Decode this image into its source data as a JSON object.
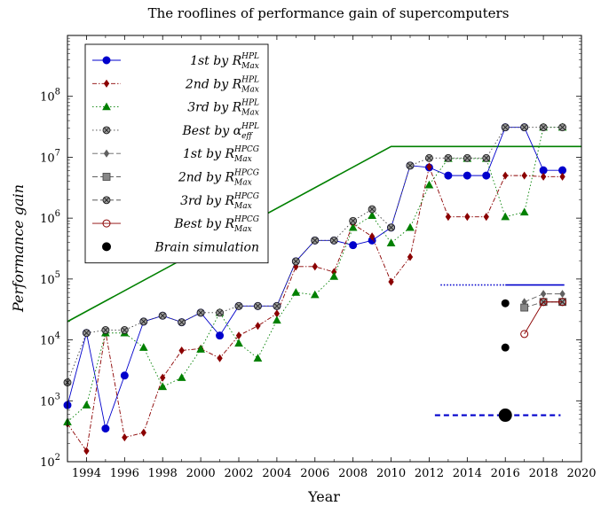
{
  "chart_data": {
    "type": "line",
    "title": "The rooflines of performance gain of supercomputers",
    "xlabel": "Year",
    "ylabel": "Performance gain",
    "xlim": [
      1993,
      2020
    ],
    "ylim": [
      100,
      1000000000
    ],
    "yscale": "log",
    "x_ticks": [
      "1994",
      "1996",
      "1998",
      "2000",
      "2002",
      "2004",
      "2006",
      "2008",
      "2010",
      "2012",
      "2014",
      "2016",
      "2018",
      "2020"
    ],
    "y_ticks": [
      {
        "base": "10",
        "exp": "2"
      },
      {
        "base": "10",
        "exp": "3"
      },
      {
        "base": "10",
        "exp": "4"
      },
      {
        "base": "10",
        "exp": "5"
      },
      {
        "base": "10",
        "exp": "6"
      },
      {
        "base": "10",
        "exp": "7"
      },
      {
        "base": "10",
        "exp": "8"
      }
    ],
    "legend_position": "top-left",
    "series": [
      {
        "name": "1st by R_Max^HPL",
        "legend": {
          "pre": "1st by R",
          "sub": "Max",
          "sup": "HPL"
        },
        "color": "#0000cc",
        "marker": "circle",
        "dash": "solid",
        "x": [
          1993,
          1994,
          1995,
          1996,
          1997,
          1998,
          1999,
          2000,
          2001,
          2002,
          2003,
          2004,
          2005,
          2006,
          2007,
          2008,
          2009,
          2010,
          2011,
          2012,
          2013,
          2014,
          2015,
          2016,
          2017,
          2018,
          2019
        ],
        "y": [
          850,
          13000,
          350,
          2600,
          20000,
          25000,
          19500,
          28000,
          11800,
          36000,
          36000,
          36000,
          195000,
          430000,
          430000,
          360000,
          430000,
          700000,
          7300000,
          6800000,
          5000000,
          5000000,
          5000000,
          31000000,
          31000000,
          6100000,
          6100000
        ]
      },
      {
        "name": "2nd by R_Max^HPL",
        "legend": {
          "pre": "2nd by R",
          "sub": "Max",
          "sup": "HPL"
        },
        "color": "#8b0000",
        "marker": "diamond",
        "dash": "dashdot",
        "x": [
          1993,
          1994,
          1995,
          1996,
          1997,
          1998,
          1999,
          2000,
          2001,
          2002,
          2003,
          2004,
          2005,
          2006,
          2007,
          2008,
          2009,
          2010,
          2011,
          2012,
          2013,
          2014,
          2015,
          2016,
          2017,
          2018,
          2019
        ],
        "y": [
          420,
          150,
          13500,
          250,
          300,
          2400,
          6700,
          7200,
          5000,
          11800,
          17000,
          27000,
          160000,
          160000,
          130000,
          800000,
          500000,
          90000,
          230000,
          7000000,
          1050000,
          1050000,
          1050000,
          5000000,
          5000000,
          4800000,
          4800000
        ]
      },
      {
        "name": "3rd by R_Max^HPL",
        "legend": {
          "pre": "3rd by R",
          "sub": "Max",
          "sup": "HPL"
        },
        "color": "#008000",
        "marker": "triangle",
        "dash": "dotted",
        "x": [
          1993,
          1994,
          1995,
          1996,
          1997,
          1998,
          1999,
          2000,
          2001,
          2002,
          2003,
          2004,
          2005,
          2006,
          2007,
          2008,
          2009,
          2010,
          2011,
          2012,
          2013,
          2014,
          2015,
          2016,
          2017,
          2018,
          2019
        ],
        "y": [
          450,
          850,
          13000,
          13000,
          7500,
          1700,
          2400,
          7000,
          28000,
          8800,
          5000,
          21000,
          60000,
          55000,
          110000,
          700000,
          1100000,
          390000,
          700000,
          3500000,
          9500000,
          9500000,
          9500000,
          1050000,
          1250000,
          31000000,
          31000000
        ]
      },
      {
        "name": "Best by alpha_eff^HPL",
        "legend": {
          "pre": "Best by α",
          "sub": "eff",
          "sup": "HPL"
        },
        "color": "#404040",
        "marker": "otimes",
        "dash": "dotted",
        "x": [
          1993,
          1994,
          1995,
          1996,
          1997,
          1998,
          1999,
          2000,
          2001,
          2002,
          2003,
          2004,
          2005,
          2006,
          2007,
          2008,
          2009,
          2010,
          2011,
          2012,
          2013,
          2014,
          2015,
          2016,
          2017,
          2018,
          2019
        ],
        "y": [
          2000,
          13000,
          14500,
          14500,
          20000,
          25000,
          19500,
          28000,
          28000,
          36000,
          36000,
          36000,
          195000,
          430000,
          430000,
          900000,
          1400000,
          700000,
          7300000,
          9700000,
          9700000,
          9700000,
          9700000,
          31000000,
          31000000,
          31000000,
          31000000
        ]
      },
      {
        "name": "1st by R_Max^HPCG",
        "legend": {
          "pre": "1st by R",
          "sub": "Max",
          "sup": "HPCG"
        },
        "color": "#606060",
        "marker": "diamond",
        "dash": "dashed",
        "x": [
          2017,
          2018,
          2019
        ],
        "y": [
          42000,
          57000,
          57000
        ]
      },
      {
        "name": "2nd by R_Max^HPCG",
        "legend": {
          "pre": "2nd by R",
          "sub": "Max",
          "sup": "HPCG"
        },
        "color": "#606060",
        "marker": "square",
        "dash": "dashed",
        "x": [
          2017,
          2018,
          2019
        ],
        "y": [
          34000,
          42000,
          42000
        ]
      },
      {
        "name": "3rd by R_Max^HPCG",
        "legend": {
          "pre": "3rd by R",
          "sub": "Max",
          "sup": "HPCG"
        },
        "color": "#404040",
        "marker": "otimes",
        "dash": "dashed",
        "x": [
          2018,
          2019
        ],
        "y": [
          42000,
          42000
        ]
      },
      {
        "name": "Best by R_Max^HPCG",
        "legend": {
          "pre": "Best by R",
          "sub": "Max",
          "sup": "HPCG"
        },
        "color": "#8b0000",
        "marker": "ocircle",
        "dash": "solid",
        "x": [
          2017,
          2018,
          2019
        ],
        "y": [
          12500,
          42000,
          42000
        ]
      },
      {
        "name": "Brain simulation",
        "legend": {
          "pre": "Brain simulation",
          "sub": "",
          "sup": ""
        },
        "color": "#000000",
        "marker": "dot",
        "dash": "none",
        "x": [
          2016,
          2016,
          2016,
          2016
        ],
        "y": [
          40000,
          7500,
          580,
          580
        ],
        "sizes": [
          4.5,
          4.5,
          4.5,
          7.5
        ]
      }
    ],
    "rooflines": [
      {
        "color": "#008000",
        "style": "solid",
        "x": [
          1993,
          2010,
          2020
        ],
        "y": [
          20000,
          15000000,
          15000000
        ]
      },
      {
        "color": "#0000cc",
        "style": "dotted",
        "x": [
          2012.6,
          2016
        ],
        "y": [
          80000,
          80000
        ]
      },
      {
        "color": "#0000cc",
        "style": "solid",
        "x": [
          2016,
          2019.1
        ],
        "y": [
          80000,
          80000
        ]
      },
      {
        "color": "#0000cc",
        "style": "dashed",
        "x": [
          2012.3,
          2016
        ],
        "y": [
          580,
          580
        ]
      },
      {
        "color": "#0000cc",
        "style": "dashed",
        "x": [
          2016,
          2018.9
        ],
        "y": [
          580,
          580
        ]
      }
    ]
  }
}
